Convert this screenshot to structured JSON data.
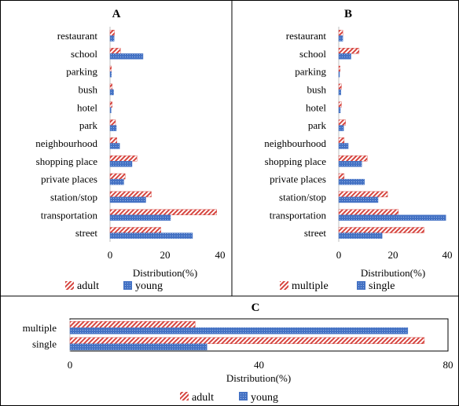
{
  "chart_data": [
    {
      "type": "bar",
      "orientation": "horizontal",
      "title": "A",
      "categories": [
        "restaurant",
        "school",
        "parking",
        "bush",
        "hotel",
        "park",
        "neighbourhood",
        "shopping place",
        "private places",
        "station/stop",
        "transportation",
        "street"
      ],
      "series": [
        {
          "name": "adult",
          "values": [
            1.6,
            3.8,
            0.5,
            0.8,
            0.8,
            2.0,
            2.5,
            9.8,
            5.5,
            15.0,
            38.8,
            18.5
          ]
        },
        {
          "name": "young",
          "values": [
            1.5,
            12.0,
            0.5,
            1.3,
            0.4,
            2.3,
            3.5,
            8.0,
            5.0,
            13.0,
            22.0,
            30.0
          ]
        }
      ],
      "xlabel": "Distribution(%)",
      "xlim": [
        0,
        40
      ],
      "xticks": [
        "0",
        "20",
        "40"
      ],
      "legend": "bottom"
    },
    {
      "type": "bar",
      "orientation": "horizontal",
      "title": "B",
      "categories": [
        "restaurant",
        "school",
        "parking",
        "bush",
        "hotel",
        "park",
        "neighbourhood",
        "shopping place",
        "private places",
        "station/stop",
        "transportation",
        "street"
      ],
      "series": [
        {
          "name": "multiple",
          "values": [
            1.5,
            7.5,
            0.5,
            1.0,
            1.0,
            2.5,
            2.0,
            10.5,
            2.0,
            18.0,
            22.0,
            31.5
          ]
        },
        {
          "name": "single",
          "values": [
            1.5,
            4.5,
            0.3,
            0.8,
            0.6,
            1.8,
            3.5,
            8.5,
            9.5,
            14.5,
            39.5,
            16.0
          ]
        }
      ],
      "xlabel": "Distribution(%)",
      "xlim": [
        0,
        40
      ],
      "xticks": [
        "0",
        "20",
        "40"
      ],
      "legend": "bottom"
    },
    {
      "type": "bar",
      "orientation": "horizontal",
      "title": "C",
      "categories": [
        "multiple",
        "single"
      ],
      "series": [
        {
          "name": "adult",
          "values": [
            26.5,
            75.0
          ]
        },
        {
          "name": "young",
          "values": [
            71.5,
            29.0
          ]
        }
      ],
      "xlabel": "Distribution(%)",
      "xlim": [
        0,
        80
      ],
      "xticks": [
        "0",
        "40",
        "80"
      ],
      "legend": "bottom"
    }
  ],
  "colors": {
    "red": "#d6453f",
    "blue": "#4472c4",
    "border": "#000000",
    "axis": "#bfbfbf"
  }
}
